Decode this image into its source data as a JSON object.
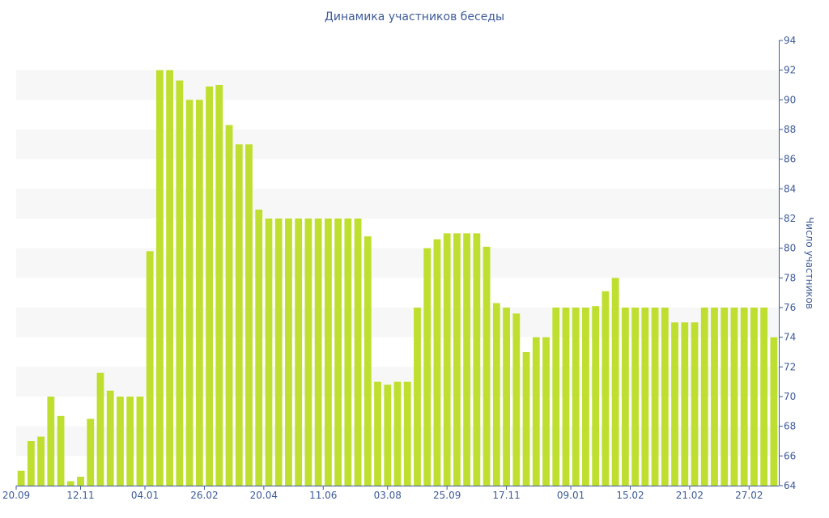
{
  "chart_data": {
    "type": "bar",
    "title": "Динамика участников беседы",
    "ylabel": "Число участников",
    "xlabel": "",
    "ylim": [
      64,
      94
    ],
    "yticks": [
      64,
      66,
      68,
      70,
      72,
      74,
      76,
      78,
      80,
      82,
      84,
      86,
      88,
      90,
      92,
      94
    ],
    "y_axis_side": "right",
    "grid": "alternating horizontal bands",
    "bar_color": "#bedf2f",
    "x_tick_labels": [
      {
        "label": "20.09",
        "index": 0
      },
      {
        "label": "12.11",
        "index": 6.5
      },
      {
        "label": "04.01",
        "index": 13
      },
      {
        "label": "26.02",
        "index": 19
      },
      {
        "label": "20.04",
        "index": 25
      },
      {
        "label": "11.06",
        "index": 31
      },
      {
        "label": "03.08",
        "index": 37.5
      },
      {
        "label": "25.09",
        "index": 43.5
      },
      {
        "label": "17.11",
        "index": 49.5
      },
      {
        "label": "09.01",
        "index": 56
      },
      {
        "label": "15.02",
        "index": 62
      },
      {
        "label": "21.02",
        "index": 68
      },
      {
        "label": "27.02",
        "index": 74
      }
    ],
    "values": [
      65,
      67,
      67.3,
      70,
      68.7,
      64.3,
      64.6,
      68.5,
      71.6,
      70.4,
      70,
      70,
      70,
      79.8,
      92,
      92,
      91.3,
      90,
      90,
      90.9,
      91,
      88.3,
      87,
      87,
      82.6,
      82,
      82,
      82,
      82,
      82,
      82,
      82,
      82,
      82,
      82,
      80.8,
      71,
      70.8,
      71,
      71,
      76,
      80,
      80.6,
      81,
      81,
      81,
      81,
      80.1,
      76.3,
      76,
      75.6,
      73,
      74,
      74,
      76,
      76,
      76,
      76,
      76.1,
      77.1,
      78,
      76,
      76,
      76,
      76,
      76,
      75,
      75,
      75,
      76,
      76,
      76,
      76,
      76,
      76,
      76,
      74
    ]
  }
}
